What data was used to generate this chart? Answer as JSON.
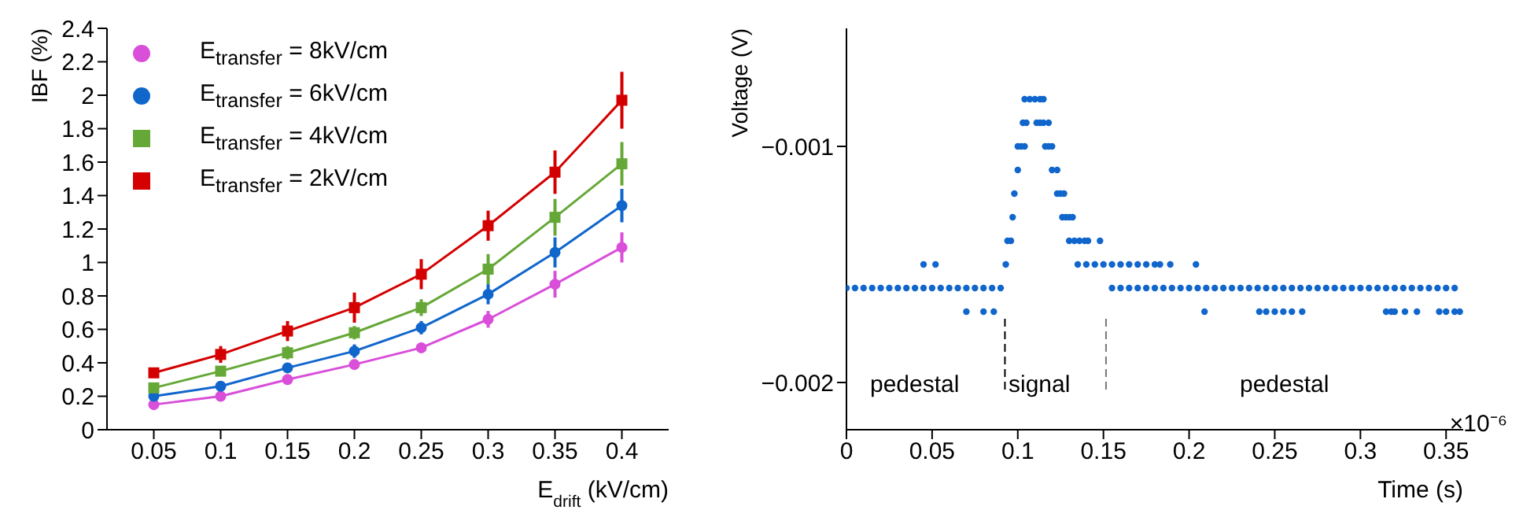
{
  "chart_data": [
    {
      "type": "line",
      "xlabel": "E$_{drift}$ (kV/cm)",
      "ylabel": "IBF (%)",
      "x": [
        0.05,
        0.1,
        0.15,
        0.2,
        0.25,
        0.3,
        0.35,
        0.4
      ],
      "xlim": [
        0.015,
        0.435
      ],
      "xticks": [
        0.05,
        0.1,
        0.15,
        0.2,
        0.25,
        0.3,
        0.35,
        0.4
      ],
      "ylim": [
        0,
        2.4
      ],
      "yticks": [
        0,
        0.2,
        0.4,
        0.6,
        0.8,
        1,
        1.2,
        1.4,
        1.6,
        1.8,
        2,
        2.2,
        2.4
      ],
      "grid": false,
      "legend": "top left",
      "series": [
        {
          "name": "E$_{transfer}$ =  8kV/cm",
          "color": "#d94fd9",
          "marker": "circle",
          "values": [
            0.15,
            0.2,
            0.3,
            0.39,
            0.49,
            0.66,
            0.87,
            1.09
          ],
          "errors": [
            0.02,
            0.02,
            0.03,
            0.03,
            0.03,
            0.05,
            0.08,
            0.09
          ]
        },
        {
          "name": "E$_{transfer}$ =  6kV/cm",
          "color": "#1166cc",
          "marker": "circle",
          "values": [
            0.2,
            0.26,
            0.37,
            0.47,
            0.61,
            0.81,
            1.06,
            1.34
          ],
          "errors": [
            0.02,
            0.02,
            0.03,
            0.04,
            0.04,
            0.06,
            0.09,
            0.1
          ]
        },
        {
          "name": "E$_{transfer}$ =  4kV/cm",
          "color": "#66a838",
          "marker": "square",
          "values": [
            0.25,
            0.35,
            0.46,
            0.58,
            0.73,
            0.96,
            1.27,
            1.59
          ],
          "errors": [
            0.02,
            0.03,
            0.04,
            0.04,
            0.05,
            0.09,
            0.11,
            0.13
          ]
        },
        {
          "name": "E$_{transfer}$ =  2kV/cm",
          "color": "#d40000",
          "marker": "square",
          "values": [
            0.34,
            0.45,
            0.59,
            0.73,
            0.93,
            1.22,
            1.54,
            1.97
          ],
          "errors": [
            0.03,
            0.05,
            0.06,
            0.09,
            0.09,
            0.09,
            0.13,
            0.17
          ]
        }
      ]
    },
    {
      "type": "scatter",
      "xlabel": "Time (s)",
      "ylabel": "Voltage (V)",
      "marker": "circle",
      "xlim": [
        0,
        0.36
      ],
      "xticks": [
        0,
        0.05,
        0.1,
        0.15,
        0.2,
        0.25,
        0.3,
        0.35
      ],
      "ylim": [
        -0.0022,
        -0.0005
      ],
      "yticks": [
        {
          "value": -0.002,
          "label": "−0.002"
        },
        {
          "value": -0.001,
          "label": "−0.001"
        }
      ],
      "grid": false,
      "legend": false,
      "annotations": [
        "pedestal",
        "signal",
        "pedestal",
        "×10⁻⁶"
      ],
      "ref_lines": [
        {
          "axis": "x",
          "value": 0.0925,
          "color": "#000000",
          "line_style": "dashed"
        },
        {
          "axis": "x",
          "value": 0.1515,
          "color": "#777777",
          "line_style": "dashed"
        }
      ],
      "series": [
        {
          "color": "#1166cc",
          "x": [
            0.104,
            0.107,
            0.11,
            0.113,
            0.115
          ],
          "values": [
            -0.0008,
            -0.0008,
            -0.0008,
            -0.0008,
            -0.0008
          ]
        },
        {
          "color": "#1166cc",
          "x": [
            0.103,
            0.105,
            0.111,
            0.113,
            0.115,
            0.118
          ],
          "values": [
            -0.0009,
            -0.0009,
            -0.0009,
            -0.0009,
            -0.0009,
            -0.0009
          ]
        },
        {
          "color": "#1166cc",
          "x": [
            0.1,
            0.102,
            0.104,
            0.116,
            0.118,
            0.12
          ],
          "values": [
            -0.001,
            -0.001,
            -0.001,
            -0.001,
            -0.001,
            -0.001
          ]
        },
        {
          "color": "#1166cc",
          "x": [
            0.1,
            0.12,
            0.123
          ],
          "values": [
            -0.0011,
            -0.0011,
            -0.0011
          ]
        },
        {
          "color": "#1166cc",
          "x": [
            0.098,
            0.123,
            0.125,
            0.127
          ],
          "values": [
            -0.0012,
            -0.0012,
            -0.0012,
            -0.0012
          ]
        },
        {
          "color": "#1166cc",
          "x": [
            0.097,
            0.126,
            0.128,
            0.13,
            0.132
          ],
          "values": [
            -0.0013,
            -0.0013,
            -0.0013,
            -0.0013,
            -0.0013
          ]
        },
        {
          "color": "#1166cc",
          "x": [
            0.094,
            0.096,
            0.13,
            0.133,
            0.136,
            0.139,
            0.141,
            0.148
          ],
          "values": [
            -0.0014,
            -0.0014,
            -0.0014,
            -0.0014,
            -0.0014,
            -0.0014,
            -0.0014,
            -0.0014
          ]
        },
        {
          "color": "#1166cc",
          "x": [
            0.045,
            0.052,
            0.093,
            0.135,
            0.14,
            0.145,
            0.15,
            0.155,
            0.16,
            0.165,
            0.17,
            0.175,
            0.18,
            0.183,
            0.189,
            0.204
          ],
          "values": [
            -0.0015,
            -0.0015,
            -0.0015,
            -0.0015,
            -0.0015,
            -0.0015,
            -0.0015,
            -0.0015,
            -0.0015,
            -0.0015,
            -0.0015,
            -0.0015,
            -0.0015,
            -0.0015,
            -0.0015,
            -0.0015
          ]
        },
        {
          "color": "#1166cc",
          "x": [
            0,
            0.005,
            0.01,
            0.015,
            0.02,
            0.025,
            0.03,
            0.035,
            0.04,
            0.045,
            0.05,
            0.055,
            0.06,
            0.065,
            0.07,
            0.075,
            0.08,
            0.085,
            0.09
          ],
          "values": [
            -0.0016,
            -0.0016,
            -0.0016,
            -0.0016,
            -0.0016,
            -0.0016,
            -0.0016,
            -0.0016,
            -0.0016,
            -0.0016,
            -0.0016,
            -0.0016,
            -0.0016,
            -0.0016,
            -0.0016,
            -0.0016,
            -0.0016,
            -0.0016,
            -0.0016
          ]
        },
        {
          "color": "#1166cc",
          "x": [
            0.155,
            0.16,
            0.165,
            0.17,
            0.175,
            0.18,
            0.185,
            0.19,
            0.195,
            0.2,
            0.205,
            0.21,
            0.215,
            0.22,
            0.225,
            0.23,
            0.235,
            0.24,
            0.245,
            0.25
          ],
          "values": [
            -0.0016,
            -0.0016,
            -0.0016,
            -0.0016,
            -0.0016,
            -0.0016,
            -0.0016,
            -0.0016,
            -0.0016,
            -0.0016,
            -0.0016,
            -0.0016,
            -0.0016,
            -0.0016,
            -0.0016,
            -0.0016,
            -0.0016,
            -0.0016,
            -0.0016,
            -0.0016
          ]
        },
        {
          "color": "#1166cc",
          "x": [
            0.255,
            0.26,
            0.265,
            0.27,
            0.275,
            0.28,
            0.285,
            0.29,
            0.295,
            0.3,
            0.305,
            0.31,
            0.315,
            0.32,
            0.325,
            0.33,
            0.335,
            0.34,
            0.345,
            0.35,
            0.355
          ],
          "values": [
            -0.0016,
            -0.0016,
            -0.0016,
            -0.0016,
            -0.0016,
            -0.0016,
            -0.0016,
            -0.0016,
            -0.0016,
            -0.0016,
            -0.0016,
            -0.0016,
            -0.0016,
            -0.0016,
            -0.0016,
            -0.0016,
            -0.0016,
            -0.0016,
            -0.0016,
            -0.0016,
            -0.0016
          ]
        },
        {
          "color": "#1166cc",
          "x": [
            0.07,
            0.08,
            0.086,
            0.209,
            0.241,
            0.245,
            0.25,
            0.255,
            0.26,
            0.266,
            0.315,
            0.318,
            0.32,
            0.326,
            0.333,
            0.346,
            0.35,
            0.355,
            0.358
          ],
          "values": [
            -0.0017,
            -0.0017,
            -0.0017,
            -0.0017,
            -0.0017,
            -0.0017,
            -0.0017,
            -0.0017,
            -0.0017,
            -0.0017,
            -0.0017,
            -0.0017,
            -0.0017,
            -0.0017,
            -0.0017,
            -0.0017,
            -0.0017,
            -0.0017,
            -0.0017
          ]
        }
      ]
    }
  ]
}
